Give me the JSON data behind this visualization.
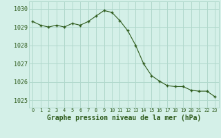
{
  "x": [
    0,
    1,
    2,
    3,
    4,
    5,
    6,
    7,
    8,
    9,
    10,
    11,
    12,
    13,
    14,
    15,
    16,
    17,
    18,
    19,
    20,
    21,
    22,
    23
  ],
  "y": [
    1029.3,
    1029.1,
    1029.0,
    1029.1,
    1029.0,
    1029.2,
    1029.1,
    1029.3,
    1029.6,
    1029.9,
    1029.8,
    1029.35,
    1028.8,
    1028.0,
    1027.0,
    1026.35,
    1026.05,
    1025.8,
    1025.75,
    1025.75,
    1025.55,
    1025.5,
    1025.5,
    1025.2
  ],
  "line_color": "#2d5a1b",
  "marker_color": "#2d5a1b",
  "background_color": "#d4f0e8",
  "grid_color": "#b0d8cc",
  "xlabel": "Graphe pression niveau de la mer (hPa)",
  "xlabel_fontsize": 7,
  "ylabel_ticks": [
    1025,
    1026,
    1027,
    1028,
    1029,
    1030
  ],
  "xtick_labels": [
    "0",
    "1",
    "2",
    "3",
    "4",
    "5",
    "6",
    "7",
    "8",
    "9",
    "10",
    "11",
    "12",
    "13",
    "14",
    "15",
    "16",
    "17",
    "18",
    "19",
    "20",
    "21",
    "22",
    "23"
  ],
  "ylim": [
    1024.6,
    1030.4
  ],
  "xlim": [
    -0.5,
    23.5
  ]
}
